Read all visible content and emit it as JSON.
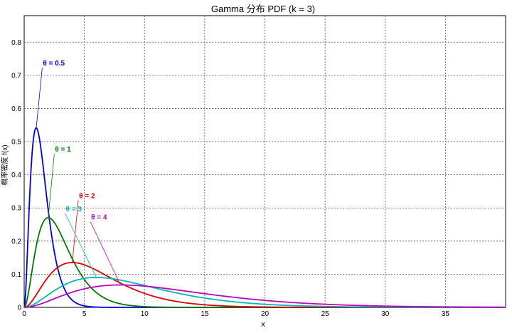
{
  "chart_data": {
    "type": "line",
    "title": "Gamma 分布 PDF (k = 3)",
    "xlabel": "x",
    "ylabel": "概率密度 f(x)",
    "xlim": [
      0,
      40
    ],
    "ylim": [
      0,
      0.88
    ],
    "xticks": [
      0,
      5,
      10,
      15,
      20,
      25,
      30,
      35
    ],
    "yticks": [
      0,
      0.1,
      0.2,
      0.3,
      0.4,
      0.5,
      0.6,
      0.7,
      0.8
    ],
    "ytick_labels": [
      "0",
      "0.1",
      "0.2",
      "0.3",
      "0.4",
      "0.5",
      "0.6",
      "0.7",
      "0.8"
    ],
    "grid": true,
    "shape_k": 3,
    "series": [
      {
        "name": "θ = 0.5",
        "theta": 0.5,
        "color": "#0000e0",
        "label_at": [
          1.5,
          0.73
        ],
        "anchor": [
          1.0,
          0.54
        ]
      },
      {
        "name": "θ = 1",
        "theta": 1,
        "color": "#007a00",
        "label_at": [
          2.5,
          0.47
        ],
        "anchor": [
          2.0,
          0.27
        ]
      },
      {
        "name": "θ = 2",
        "theta": 2,
        "color": "#e00000",
        "label_at": [
          4.5,
          0.33
        ],
        "anchor": [
          4.0,
          0.135
        ]
      },
      {
        "name": "θ = 3",
        "theta": 3,
        "color": "#00b8b8",
        "label_at": [
          3.4,
          0.29
        ],
        "anchor": [
          6.0,
          0.09
        ]
      },
      {
        "name": "θ = 4",
        "theta": 4,
        "color": "#c000c0",
        "label_at": [
          5.5,
          0.265
        ],
        "anchor": [
          8.0,
          0.068
        ]
      }
    ]
  }
}
